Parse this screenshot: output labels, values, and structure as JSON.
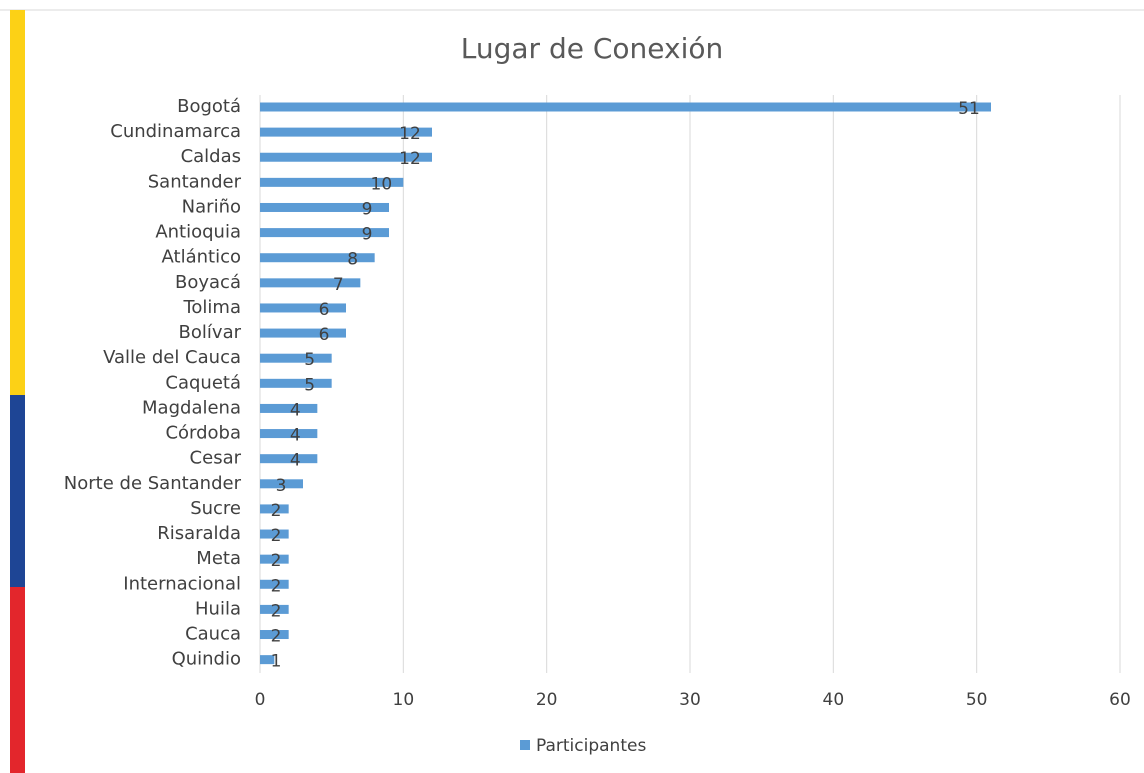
{
  "chart_data": {
    "type": "bar",
    "orientation": "horizontal",
    "title": "Lugar de Conexión",
    "categories": [
      "Bogotá",
      "Cundinamarca",
      "Caldas",
      "Santander",
      "Nariño",
      "Antioquia",
      "Atlántico",
      "Boyacá",
      "Tolima",
      "Bolívar",
      "Valle del Cauca",
      "Caquetá",
      "Magdalena",
      "Córdoba",
      "Cesar",
      "Norte de Santander",
      "Sucre",
      "Risaralda",
      "Meta",
      "Internacional",
      "Huila",
      "Cauca",
      "Quindio"
    ],
    "series": [
      {
        "name": "Participantes",
        "color": "#5b9bd5",
        "values": [
          51,
          12,
          12,
          10,
          9,
          9,
          8,
          7,
          6,
          6,
          5,
          5,
          4,
          4,
          4,
          3,
          2,
          2,
          2,
          2,
          2,
          2,
          1
        ]
      }
    ],
    "xlim": [
      0,
      60
    ],
    "xticks": [
      0,
      10,
      20,
      30,
      40,
      50,
      60
    ],
    "grid": true,
    "legend": "bottom"
  }
}
